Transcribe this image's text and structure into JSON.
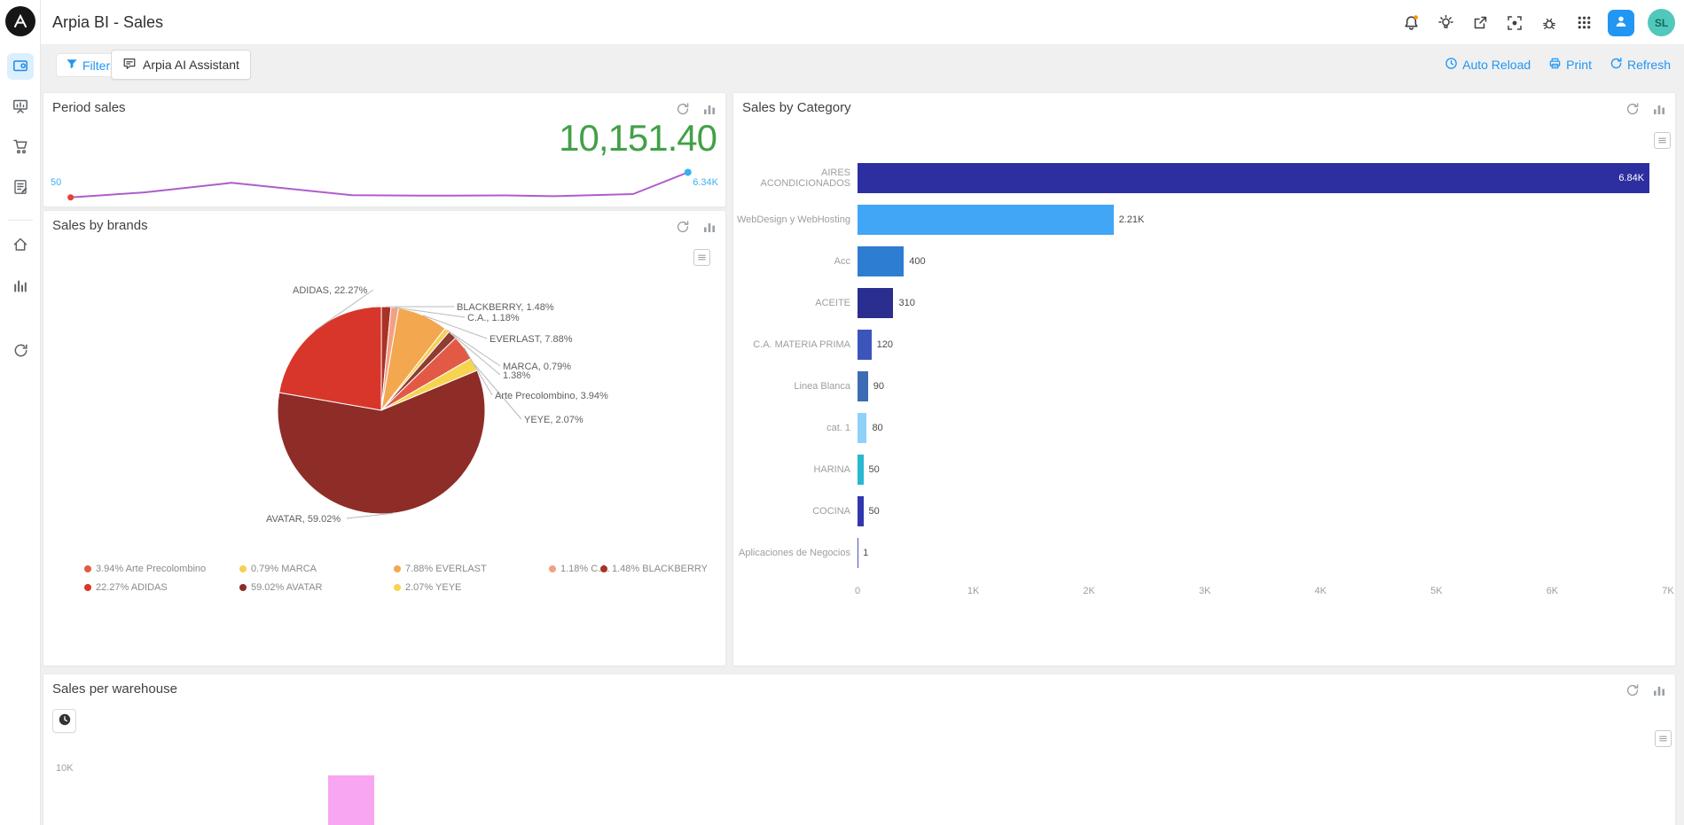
{
  "app": {
    "title": "Arpia BI - Sales",
    "avatar_initials": "SL"
  },
  "colors": {
    "accent": "#2196f3",
    "positive": "#43a047"
  },
  "toolbar": {
    "filters_label": "Filters",
    "ai_assistant_label": "Arpia AI Assistant",
    "auto_reload_label": "Auto Reload",
    "print_label": "Print",
    "refresh_label": "Refresh"
  },
  "panels": {
    "period_sales": {
      "title": "Period sales",
      "big_value": "10,151.40",
      "start_label": "50",
      "end_label": "6.34K"
    },
    "sales_by_brands": {
      "title": "Sales by brands"
    },
    "sales_by_category": {
      "title": "Sales by Category"
    },
    "sales_per_warehouse": {
      "title": "Sales per warehouse",
      "y_tick": "10K"
    }
  },
  "chart_data": [
    {
      "type": "line",
      "title": "Period sales",
      "big_value_display": "10,151.40",
      "line_color": "#b05ccc",
      "start_point_color": "#e5413a",
      "end_point_color": "#35b2f0",
      "start_label": "50",
      "end_label": "6.34K",
      "ymax": 8000,
      "points": [
        {
          "x": 0.03,
          "y": 50
        },
        {
          "x": 0.14,
          "y": 1300
        },
        {
          "x": 0.27,
          "y": 3700
        },
        {
          "x": 0.45,
          "y": 600
        },
        {
          "x": 0.55,
          "y": 500
        },
        {
          "x": 0.68,
          "y": 550
        },
        {
          "x": 0.75,
          "y": 350
        },
        {
          "x": 0.87,
          "y": 900
        },
        {
          "x": 0.952,
          "y": 6340
        }
      ]
    },
    {
      "type": "pie",
      "title": "Sales by brands",
      "unit": "percent",
      "slices": [
        {
          "name": "BLACKBERRY",
          "value": 1.48,
          "color": "#a93226"
        },
        {
          "name": "C.A.",
          "value": 1.18,
          "color": "#f2a085"
        },
        {
          "name": "EVERLAST",
          "value": 7.88,
          "color": "#f3a74f"
        },
        {
          "name": "MARCA",
          "value": 0.79,
          "color": "#f6cf55"
        },
        {
          "name": "",
          "value": 1.38,
          "color": "#8f3c33"
        },
        {
          "name": "Arte Precolombino",
          "value": 3.94,
          "color": "#e25a45"
        },
        {
          "name": "YEYE",
          "value": 2.07,
          "color": "#f6d44f"
        },
        {
          "name": "AVATAR",
          "value": 59.02,
          "color": "#8e2c28"
        },
        {
          "name": "ADIDAS",
          "value": 22.27,
          "color": "#d9362b"
        }
      ],
      "callouts": [
        "ADIDAS, 22.27%",
        "BLACKBERRY, 1.48%",
        "C.A., 1.18%",
        "EVERLAST, 7.88%",
        "MARCA, 0.79%",
        "1.38%",
        "Arte Precolombino, 3.94%",
        "YEYE, 2.07%",
        "AVATAR, 59.02%"
      ],
      "legend": [
        {
          "label": "3.94% Arte Precolombino",
          "color": "#e25a45"
        },
        {
          "label": "0.79% MARCA",
          "color": "#f6cf55"
        },
        {
          "label": "7.88% EVERLAST",
          "color": "#f3a74f"
        },
        {
          "label": "1.18% C.A.",
          "color": "#f2a085"
        },
        {
          "label": "1.48% BLACKBERRY",
          "color": "#a93226"
        },
        {
          "label": "22.27% ADIDAS",
          "color": "#d9362b"
        },
        {
          "label": "59.02% AVATAR",
          "color": "#8e2c28"
        },
        {
          "label": "2.07% YEYE",
          "color": "#f6d44f"
        }
      ]
    },
    {
      "type": "bar",
      "orientation": "horizontal",
      "title": "Sales by Category",
      "xlim": [
        0,
        7000
      ],
      "x_ticks": [
        "0",
        "1K",
        "2K",
        "3K",
        "4K",
        "5K",
        "6K",
        "7K"
      ],
      "categories": [
        "AIRES ACONDICIONADOS",
        "WebDesign y WebHosting",
        "Acc",
        "ACEITE",
        "C.A. MATERIA PRIMA",
        "Linea Blanca",
        "cat. 1",
        "HARINA",
        "COCINA",
        "Aplicaciones de Negocios"
      ],
      "values": [
        6840,
        2210,
        400,
        310,
        120,
        90,
        80,
        50,
        50,
        1
      ],
      "value_labels": [
        "6.84K",
        "2.21K",
        "400",
        "310",
        "120",
        "90",
        "80",
        "50",
        "50",
        "1"
      ],
      "colors": [
        "#2d2fa0",
        "#41a6f6",
        "#2d7ed3",
        "#2a2e8e",
        "#3b55bb",
        "#3d6cb4",
        "#8ed2f8",
        "#28b8cf",
        "#3137ad",
        "#4a52c0"
      ]
    },
    {
      "type": "bar",
      "orientation": "vertical",
      "title": "Sales per warehouse",
      "y_ticks": [
        "10K"
      ],
      "ylim": [
        0,
        10000
      ],
      "values": [
        9700
      ],
      "bar_color": "#f8a5f2"
    }
  ]
}
